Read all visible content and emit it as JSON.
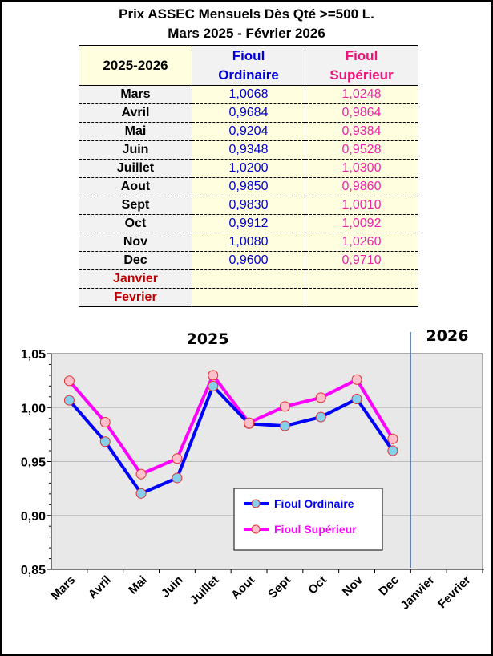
{
  "title_line1": "Prix ASSEC Mensuels  Dès Qté >=500 L.",
  "title_line2": "Mars 2025 - Février 2026",
  "table": {
    "header": {
      "period": "2025-2026",
      "col1": [
        "Fioul",
        "Ordinaire"
      ],
      "col2": [
        "Fioul",
        "Supérieur"
      ]
    },
    "rows": [
      {
        "month": "Mars",
        "ord": "1,0068",
        "sup": "1,0248"
      },
      {
        "month": "Avril",
        "ord": "0,9684",
        "sup": "0,9864"
      },
      {
        "month": "Mai",
        "ord": "0,9204",
        "sup": "0,9384"
      },
      {
        "month": "Juin",
        "ord": "0,9348",
        "sup": "0,9528"
      },
      {
        "month": "Juillet",
        "ord": "1,0200",
        "sup": "1,0300"
      },
      {
        "month": "Aout",
        "ord": "0,9850",
        "sup": "0,9860"
      },
      {
        "month": "Sept",
        "ord": "0,9830",
        "sup": "1,0010"
      },
      {
        "month": "Oct",
        "ord": "0,9912",
        "sup": "1,0092"
      },
      {
        "month": "Nov",
        "ord": "1,0080",
        "sup": "1,0260"
      },
      {
        "month": "Dec",
        "ord": "0,9600",
        "sup": "0,9710"
      },
      {
        "month": "Janvier",
        "ord": "",
        "sup": ""
      },
      {
        "month": "Fevrier",
        "ord": "",
        "sup": ""
      }
    ]
  },
  "chart_data": {
    "type": "line",
    "categories": [
      "Mars",
      "Avril",
      "Mai",
      "Juin",
      "Juillet",
      "Aout",
      "Sept",
      "Oct",
      "Nov",
      "Dec",
      "Janvier",
      "Fevrier"
    ],
    "year_labels": [
      "2025",
      "2026"
    ],
    "series": [
      {
        "name": "Fioul Ordinaire",
        "color": "#0000ff",
        "marker": "#87ceeb",
        "values": [
          1.0068,
          0.9684,
          0.9204,
          0.9348,
          1.02,
          0.985,
          0.983,
          0.9912,
          1.008,
          0.96,
          null,
          null
        ]
      },
      {
        "name": "Fioul Supérieur",
        "color": "#ff00ff",
        "marker": "#ffc0cb",
        "values": [
          1.0248,
          0.9864,
          0.9384,
          0.9528,
          1.03,
          0.986,
          1.001,
          1.0092,
          1.026,
          0.971,
          null,
          null
        ]
      }
    ],
    "ylim": [
      0.85,
      1.05
    ],
    "yticks": [
      "0,85",
      "0,90",
      "0,95",
      "1,00",
      "1,05"
    ],
    "legend": "center-right",
    "grid": true
  }
}
